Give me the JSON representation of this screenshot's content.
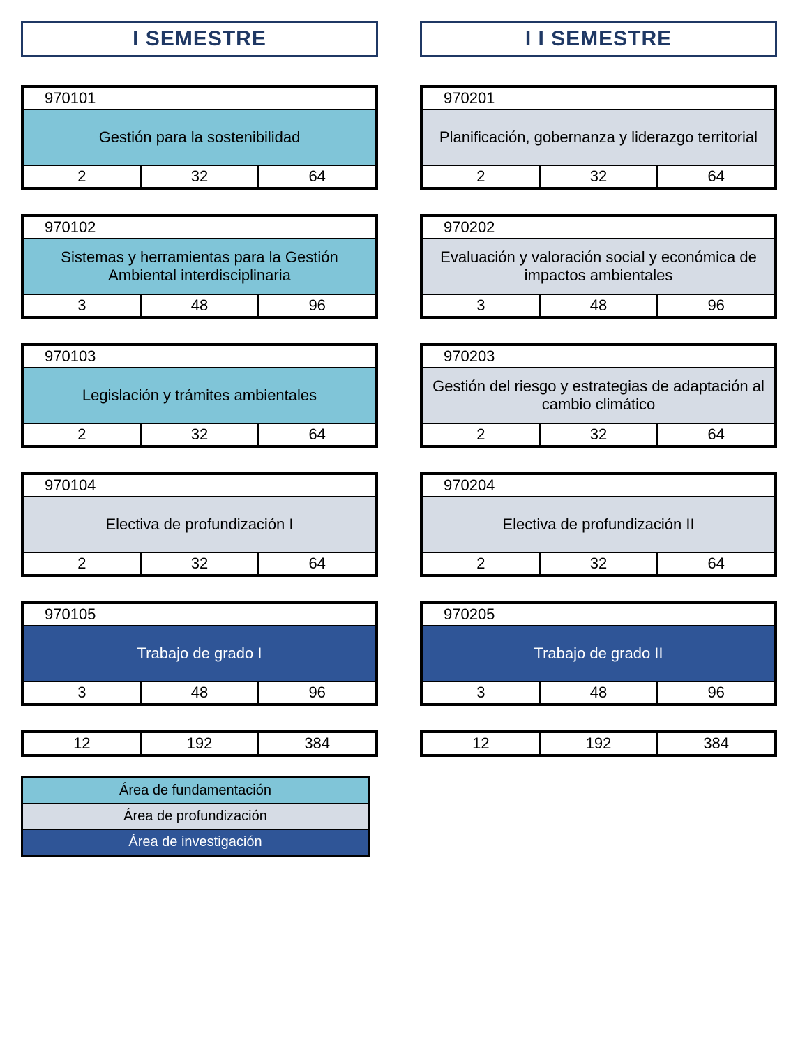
{
  "colors": {
    "fundamentacion": "#80c5d8",
    "profundizacion": "#d6dce5",
    "investigacion": "#2f5597",
    "header_border": "#1f3864"
  },
  "semesters": [
    {
      "header": "I  SEMESTRE",
      "courses": [
        {
          "code": "970101",
          "title": "Gestión para  la sostenibilidad",
          "area": "fundamentacion",
          "stats": [
            "2",
            "32",
            "64"
          ]
        },
        {
          "code": "970102",
          "title": "Sistemas y herramientas para la Gestión Ambiental interdisciplinaria",
          "area": "fundamentacion",
          "stats": [
            "3",
            "48",
            "96"
          ]
        },
        {
          "code": "970103",
          "title": "Legislación y trámites ambientales",
          "area": "fundamentacion",
          "stats": [
            "2",
            "32",
            "64"
          ]
        },
        {
          "code": "970104",
          "title": "Electiva de profundización I",
          "area": "profundizacion",
          "stats": [
            "2",
            "32",
            "64"
          ]
        },
        {
          "code": "970105",
          "title": "Trabajo de grado I",
          "area": "investigacion",
          "stats": [
            "3",
            "48",
            "96"
          ]
        }
      ],
      "totals": [
        "12",
        "192",
        "384"
      ]
    },
    {
      "header": "I I SEMESTRE",
      "courses": [
        {
          "code": "970201",
          "title": "Planificación, gobernanza y liderazgo territorial",
          "area": "profundizacion",
          "stats": [
            "2",
            "32",
            "64"
          ]
        },
        {
          "code": "970202",
          "title": "Evaluación y valoración social y económica de impactos ambientales",
          "area": "profundizacion",
          "stats": [
            "3",
            "48",
            "96"
          ]
        },
        {
          "code": "970203",
          "title": "Gestión del riesgo y estrategias de adaptación al cambio climático",
          "area": "profundizacion",
          "stats": [
            "2",
            "32",
            "64"
          ]
        },
        {
          "code": "970204",
          "title": "Electiva de profundización II",
          "area": "profundizacion",
          "stats": [
            "2",
            "32",
            "64"
          ]
        },
        {
          "code": "970205",
          "title": "Trabajo de grado II",
          "area": "investigacion",
          "stats": [
            "3",
            "48",
            "96"
          ]
        }
      ],
      "totals": [
        "12",
        "192",
        "384"
      ]
    }
  ],
  "legend": [
    {
      "label": "Área de fundamentación",
      "area": "fundamentacion",
      "text_color": "#000000"
    },
    {
      "label": "Área de profundización",
      "area": "profundizacion",
      "text_color": "#000000"
    },
    {
      "label": "Área de investigación",
      "area": "investigacion",
      "text_color": "#ffffff"
    }
  ]
}
